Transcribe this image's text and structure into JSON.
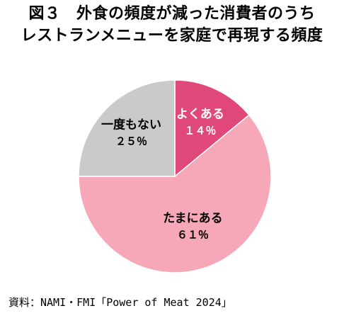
{
  "title": {
    "line1": "図３　外食の頻度が減った消費者のうち",
    "line2": "レストランメニューを家庭で再現する頻度"
  },
  "chart_data": {
    "type": "pie",
    "categories": [
      "よくある",
      "たまにある",
      "一度もない"
    ],
    "values": [
      14,
      61,
      25
    ],
    "value_labels": [
      "１４％",
      "６１％",
      "２５％"
    ],
    "colors": [
      "#e0487a",
      "#f7a8b8",
      "#cbcacb"
    ],
    "label_colors": [
      "#ffffff",
      "#000000",
      "#000000"
    ],
    "title": "図３　外食の頻度が減った消費者のうち レストランメニューを家庭で再現する頻度",
    "xlabel": "",
    "ylabel": "",
    "legend": "none",
    "start_angle": "12 o'clock, clockwise"
  },
  "source": "資料：NAMI・FMI「Power of Meat 2024」"
}
